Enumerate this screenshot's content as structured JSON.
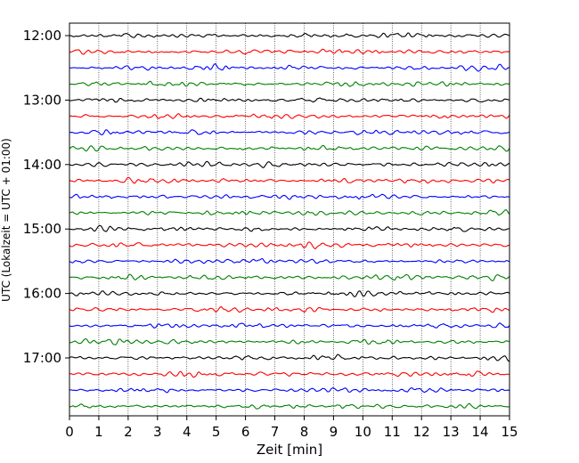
{
  "chart_data": {
    "type": "line",
    "title": "",
    "xlabel": "Zeit  [min]",
    "ylabel": "UTC (Lokalzeit = UTC + 01:00)",
    "xlim": [
      0,
      15
    ],
    "x_ticks": [
      "0",
      "1",
      "2",
      "3",
      "4",
      "5",
      "6",
      "7",
      "8",
      "9",
      "10",
      "11",
      "12",
      "13",
      "14",
      "15"
    ],
    "y_tick_labels": [
      "12:00",
      "13:00",
      "14:00",
      "15:00",
      "16:00",
      "17:00"
    ],
    "grid": "vertical dotted at each minute",
    "trace_interval_minutes": 15,
    "trace_count": 24,
    "trace_start": "12:00",
    "trace_end": "17:45",
    "trace_colors": [
      "#000000",
      "#ff0000",
      "#0000ff",
      "#008000"
    ]
  }
}
